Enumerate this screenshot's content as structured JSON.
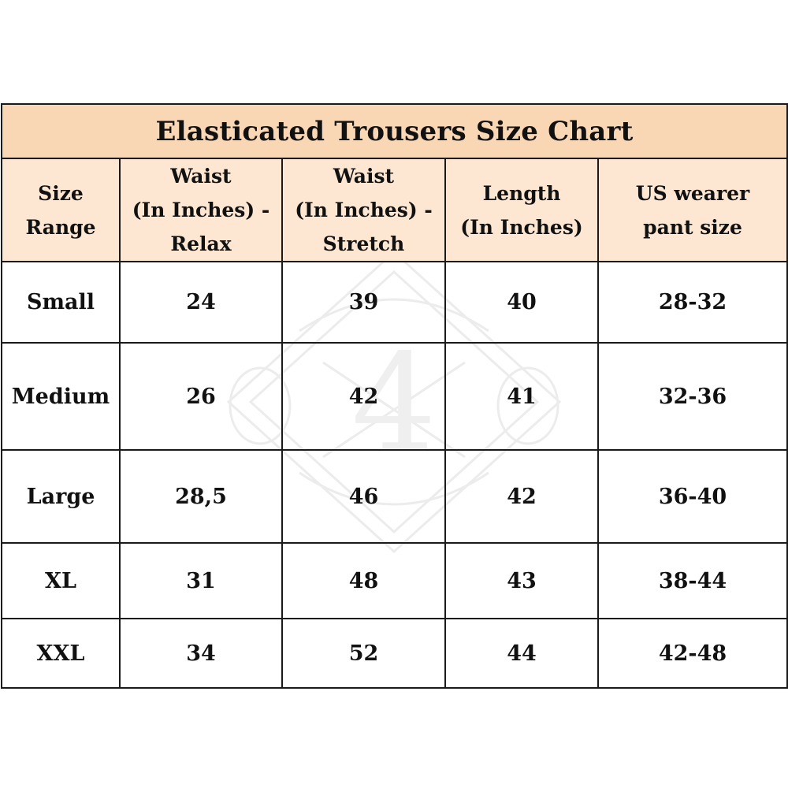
{
  "title": "Elasticated Trousers Size Chart",
  "colors": {
    "header_fill": "#f9d6b4",
    "subheader_fill": "#fde6d2",
    "border": "#1a1a1a",
    "text": "#111111"
  },
  "columns": [
    [
      "Size",
      "Range"
    ],
    [
      "Waist",
      "(In Inches) -",
      "Relax"
    ],
    [
      "Waist",
      "(In Inches) -",
      "Stretch"
    ],
    [
      "Length",
      "(In Inches)"
    ],
    [
      "US wearer",
      "pant size"
    ]
  ],
  "rows": [
    [
      "Small",
      "24",
      "39",
      "40",
      "28-32"
    ],
    [
      "Medium",
      "26",
      "42",
      "41",
      "32-36"
    ],
    [
      "Large",
      "28,5",
      "46",
      "42",
      "36-40"
    ],
    [
      "XL",
      "31",
      "48",
      "43",
      "38-44"
    ],
    [
      "XXL",
      "34",
      "52",
      "44",
      "42-48"
    ]
  ]
}
